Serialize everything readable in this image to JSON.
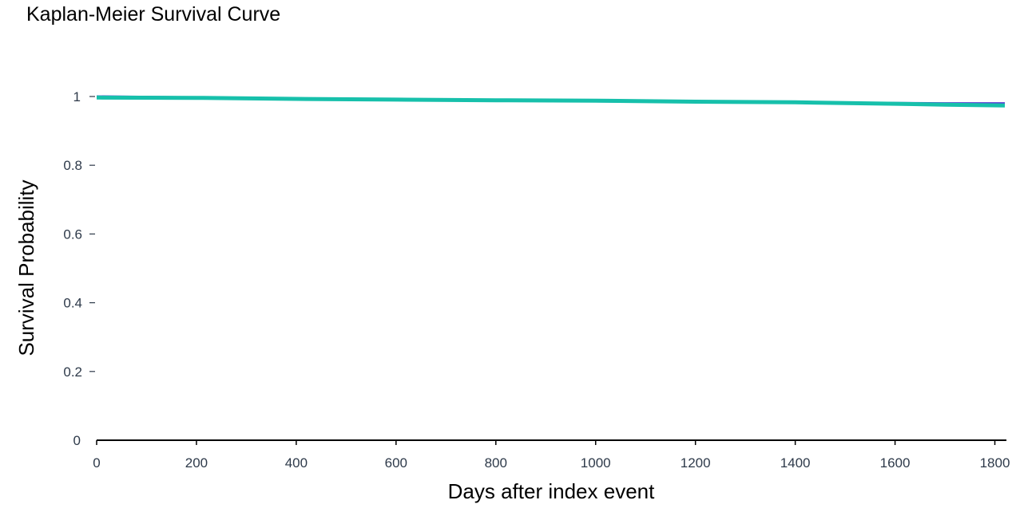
{
  "chart_data": {
    "type": "line",
    "title": "Kaplan-Meier Survival Curve",
    "xlabel": "Days after index event",
    "ylabel": "Survival Probability",
    "xlim": [
      0,
      1820
    ],
    "ylim": [
      0,
      1
    ],
    "x_ticks": [
      0,
      200,
      400,
      600,
      800,
      1000,
      1200,
      1400,
      1600,
      1800
    ],
    "x_tick_labels": [
      "0",
      "200",
      "400",
      "600",
      "800",
      "1000",
      "1200",
      "1400",
      "1600",
      "1800"
    ],
    "y_ticks": [
      0,
      0.2,
      0.4,
      0.6,
      0.8,
      1
    ],
    "y_tick_labels": [
      "0",
      "0.2",
      "0.4",
      "0.6",
      "0.8",
      "1"
    ],
    "grid": false,
    "legend": "none",
    "series": [
      {
        "color": "#5b3fd6",
        "x": [
          0,
          200,
          400,
          600,
          800,
          1000,
          1200,
          1400,
          1600,
          1700,
          1820
        ],
        "y": [
          1.0,
          0.997,
          0.994,
          0.991,
          0.988,
          0.986,
          0.984,
          0.982,
          0.981,
          0.98,
          0.98
        ]
      },
      {
        "color": "#17c0ab",
        "x": [
          0,
          200,
          400,
          600,
          800,
          1000,
          1200,
          1400,
          1600,
          1700,
          1820
        ],
        "y": [
          0.997,
          0.996,
          0.993,
          0.991,
          0.989,
          0.988,
          0.985,
          0.983,
          0.979,
          0.976,
          0.974
        ]
      }
    ]
  }
}
